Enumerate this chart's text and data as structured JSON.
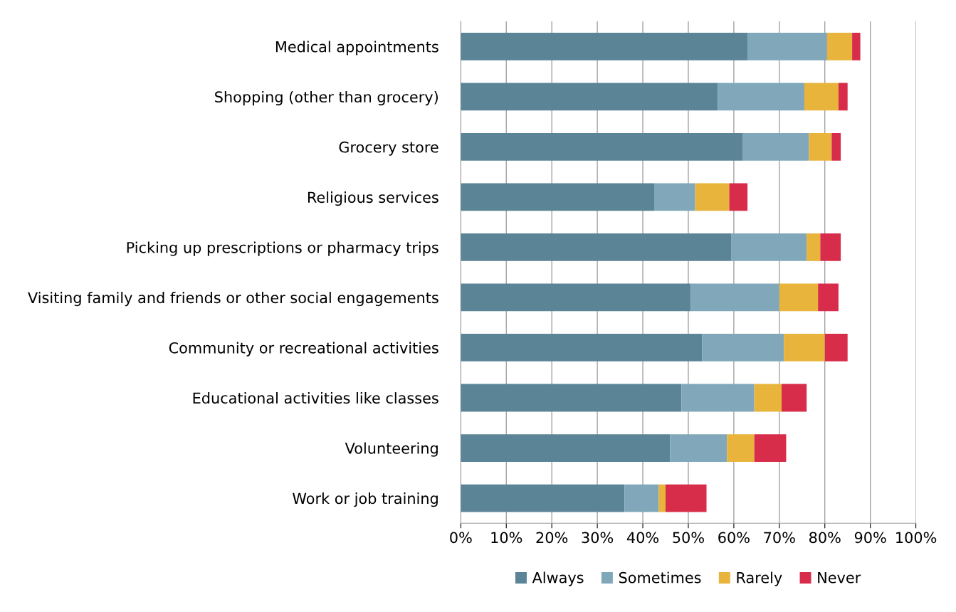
{
  "chart_data": {
    "type": "bar",
    "orientation": "horizontal",
    "stacked": true,
    "categories": [
      "Medical appointments",
      "Shopping (other than grocery)",
      "Grocery store",
      "Religious services",
      "Picking up prescriptions or pharmacy trips",
      "Visiting family and friends or other social engagements",
      "Community or recreational activities",
      "Educational activities like classes",
      "Volunteering",
      "Work or job training"
    ],
    "series": [
      {
        "name": "Always",
        "color": "#5b8497",
        "values": [
          63,
          56.5,
          62,
          42.5,
          59.5,
          50.5,
          53,
          48.5,
          46,
          36
        ]
      },
      {
        "name": "Sometimes",
        "color": "#80a8ba",
        "values": [
          17.5,
          19,
          14.5,
          9,
          16.5,
          19.5,
          18,
          16,
          12.5,
          7.5
        ]
      },
      {
        "name": "Rarely",
        "color": "#e8b43c",
        "values": [
          5.5,
          7.5,
          5,
          7.5,
          3,
          8.5,
          9,
          6,
          6,
          1.5
        ]
      },
      {
        "name": "Never",
        "color": "#d72c4a",
        "values": [
          1.8,
          2,
          2,
          4,
          4.5,
          4.5,
          5,
          5.5,
          7,
          9
        ]
      }
    ],
    "xlim": [
      0,
      100
    ],
    "xticks": [
      {
        "value": 0,
        "label": "0%"
      },
      {
        "value": 10,
        "label": "10%"
      },
      {
        "value": 20,
        "label": "20%"
      },
      {
        "value": 30,
        "label": "30%"
      },
      {
        "value": 40,
        "label": "40%"
      },
      {
        "value": 50,
        "label": "50%"
      },
      {
        "value": 60,
        "label": "60%"
      },
      {
        "value": 70,
        "label": "70%"
      },
      {
        "value": 80,
        "label": "80%"
      },
      {
        "value": 90,
        "label": "90%"
      },
      {
        "value": 100,
        "label": "100%"
      }
    ],
    "grid": "x",
    "legend": "bottom"
  }
}
